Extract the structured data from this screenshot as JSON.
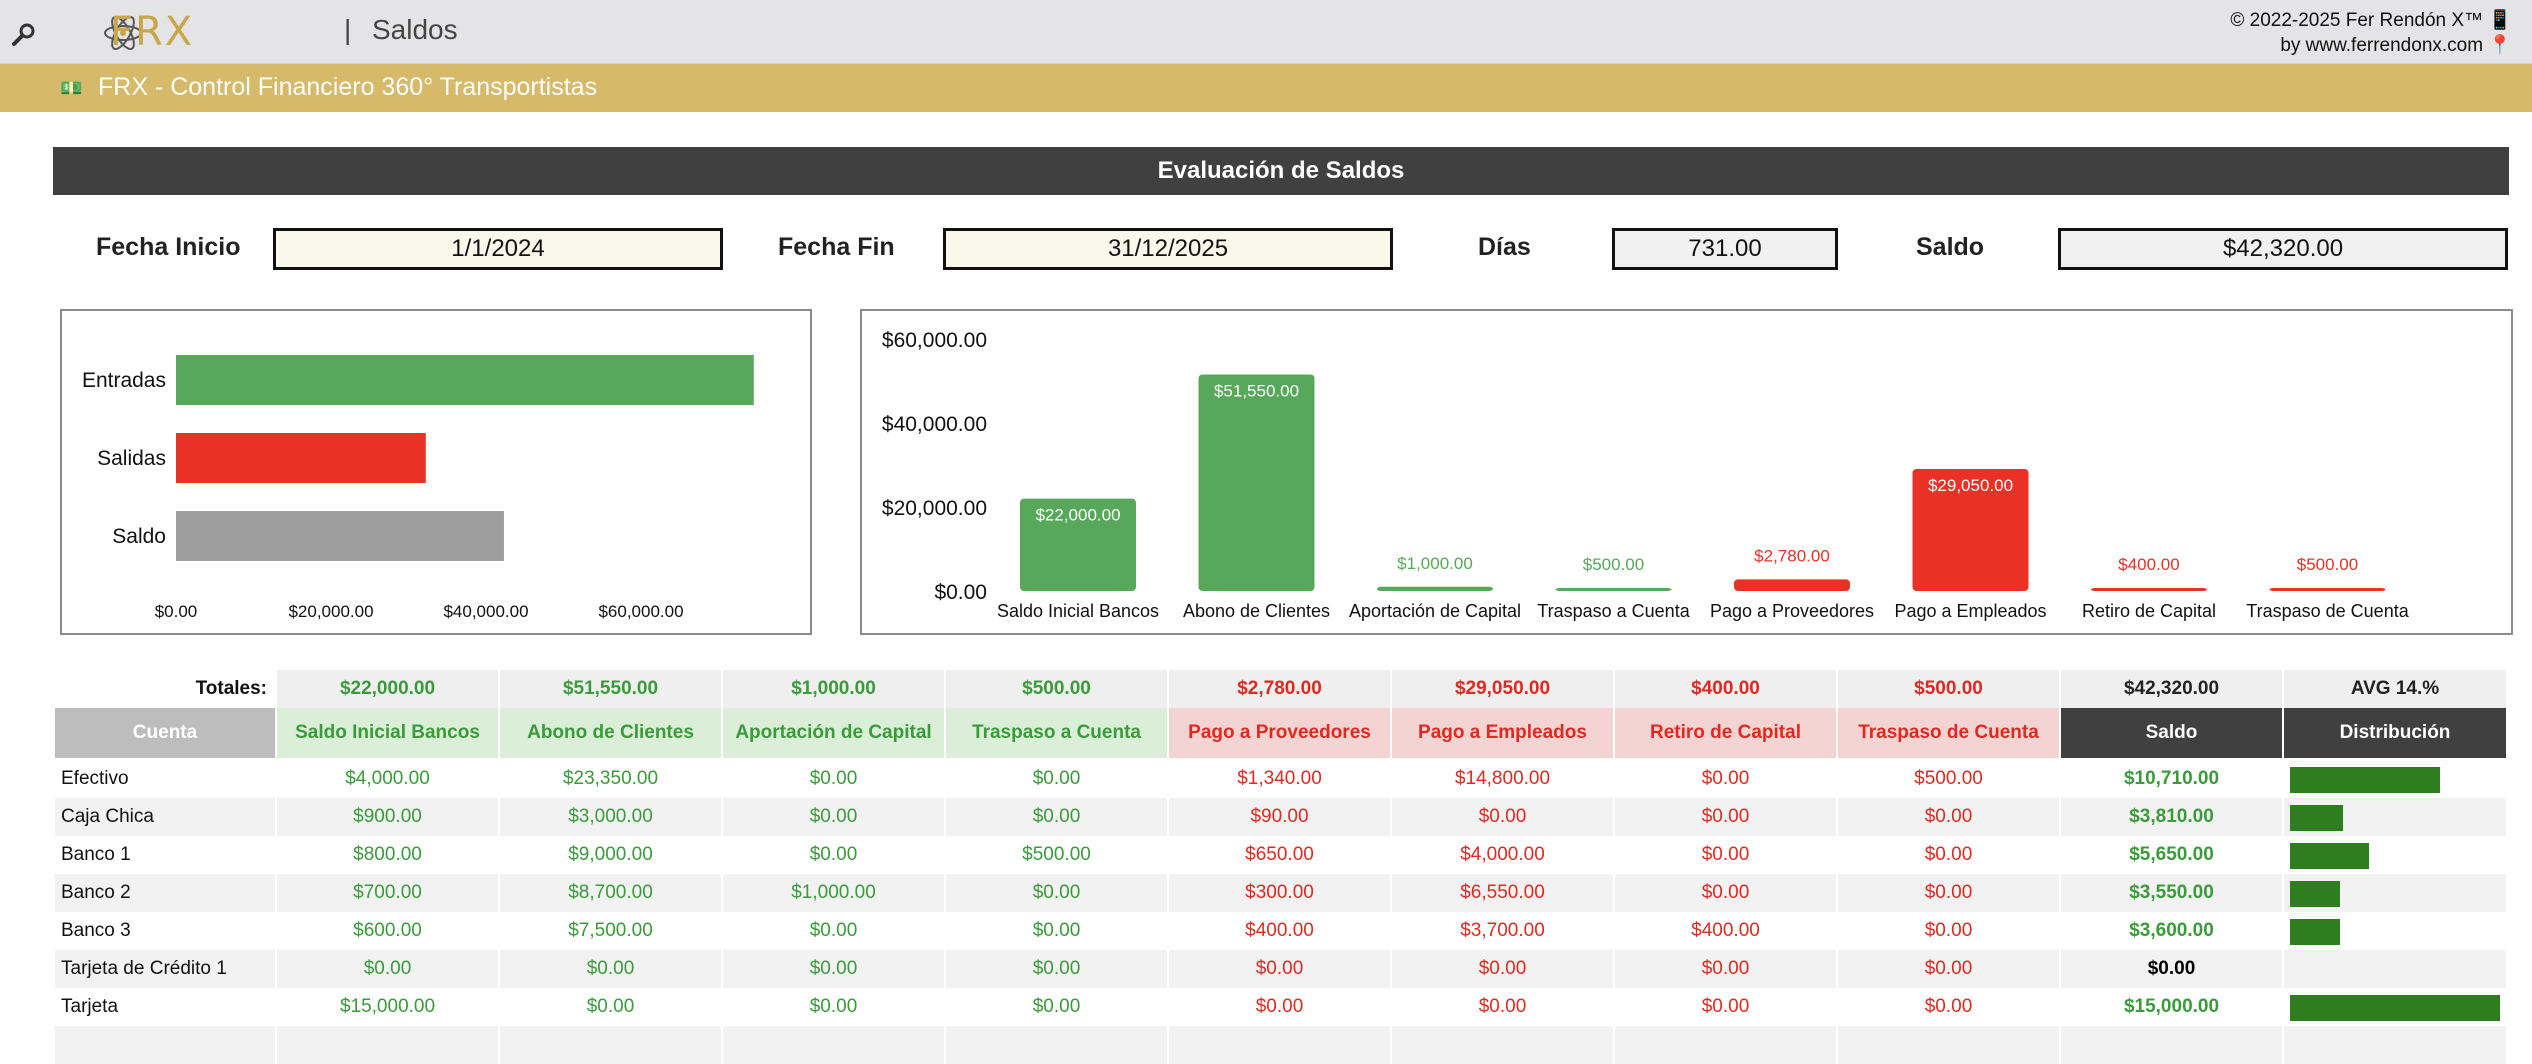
{
  "header": {
    "page_name": "Saldos",
    "separator": "|",
    "logo_text": "FRX",
    "copyright_line1": "© 2022-2025 Fer Rendón X™ 📱",
    "copyright_line2": "by www.ferrendonx.com 📍",
    "subtitle_icon": "💵",
    "subtitle": "FRX - Control Financiero 360° Transportistas",
    "brand_color": "#d6b969"
  },
  "section": {
    "title": "Evaluación de Saldos"
  },
  "filters": {
    "start_label": "Fecha Inicio",
    "start_value": "1/1/2024",
    "end_label": "Fecha Fin",
    "end_value": "31/12/2025",
    "days_label": "Días",
    "days_value": "731.00",
    "balance_label": "Saldo",
    "balance_value": "$42,320.00"
  },
  "chart_data": [
    {
      "type": "bar",
      "orientation": "horizontal",
      "categories": [
        "Entradas",
        "Salidas",
        "Saldo"
      ],
      "values": [
        74550,
        32230,
        42320
      ],
      "colors": [
        "#57a85b",
        "#e93125",
        "#9e9e9e"
      ],
      "xlim": [
        0,
        74550
      ],
      "ticks": [
        0,
        20000,
        40000,
        60000
      ],
      "tick_labels": [
        "$0.00",
        "$20,000.00",
        "$40,000.00",
        "$60,000.00"
      ]
    },
    {
      "type": "bar",
      "categories": [
        "Saldo Inicial Bancos",
        "Abono de Clientes",
        "Aportación de Capital",
        "Traspaso a Cuenta",
        "Pago a Proveedores",
        "Pago a Empleados",
        "Retiro de Capital",
        "Traspaso de Cuenta"
      ],
      "values": [
        22000,
        51550,
        1000,
        500,
        2780,
        29050,
        400,
        500
      ],
      "data_labels": [
        "$22,000.00",
        "$51,550.00",
        "$1,000.00",
        "$500.00",
        "$2,780.00",
        "$29,050.00",
        "$400.00",
        "$500.00"
      ],
      "colors": [
        "#57a85b",
        "#57a85b",
        "#57a85b",
        "#57a85b",
        "#e93125",
        "#e93125",
        "#e93125",
        "#e93125"
      ],
      "ylim": [
        0,
        60000
      ],
      "ticks": [
        0,
        20000,
        40000,
        60000
      ],
      "tick_labels": [
        "$0.00",
        "$20,000.00",
        "$40,000.00",
        "$60,000.00"
      ]
    }
  ],
  "table": {
    "totals_label": "Totales:",
    "totals": [
      "$22,000.00",
      "$51,550.00",
      "$1,000.00",
      "$500.00",
      "$2,780.00",
      "$29,050.00",
      "$400.00",
      "$500.00",
      "$42,320.00",
      "AVG 14.%"
    ],
    "headers": [
      "Cuenta",
      "Saldo Inicial Bancos",
      "Abono de Clientes",
      "Aportación de Capital",
      "Traspaso a Cuenta",
      "Pago a Proveedores",
      "Pago a Empleados",
      "Retiro de Capital",
      "Traspaso de Cuenta",
      "Saldo",
      "Distribución"
    ],
    "rows": [
      {
        "cells": [
          "Efectivo",
          "$4,000.00",
          "$23,350.00",
          "$0.00",
          "$0.00",
          "$1,340.00",
          "$14,800.00",
          "$0.00",
          "$500.00",
          "$10,710.00"
        ],
        "share": 0.714
      },
      {
        "cells": [
          "Caja Chica",
          "$900.00",
          "$3,000.00",
          "$0.00",
          "$0.00",
          "$90.00",
          "$0.00",
          "$0.00",
          "$0.00",
          "$3,810.00"
        ],
        "share": 0.254
      },
      {
        "cells": [
          "Banco 1",
          "$800.00",
          "$9,000.00",
          "$0.00",
          "$500.00",
          "$650.00",
          "$4,000.00",
          "$0.00",
          "$0.00",
          "$5,650.00"
        ],
        "share": 0.377
      },
      {
        "cells": [
          "Banco 2",
          "$700.00",
          "$8,700.00",
          "$1,000.00",
          "$0.00",
          "$300.00",
          "$6,550.00",
          "$0.00",
          "$0.00",
          "$3,550.00"
        ],
        "share": 0.237
      },
      {
        "cells": [
          "Banco 3",
          "$600.00",
          "$7,500.00",
          "$0.00",
          "$0.00",
          "$400.00",
          "$3,700.00",
          "$400.00",
          "$0.00",
          "$3,600.00"
        ],
        "share": 0.24
      },
      {
        "cells": [
          "Tarjeta de Crédito 1",
          "$0.00",
          "$0.00",
          "$0.00",
          "$0.00",
          "$0.00",
          "$0.00",
          "$0.00",
          "$0.00",
          "$0.00"
        ],
        "share": 0
      },
      {
        "cells": [
          "Tarjeta",
          "$15,000.00",
          "$0.00",
          "$0.00",
          "$0.00",
          "$0.00",
          "$0.00",
          "$0.00",
          "$0.00",
          "$15,000.00"
        ],
        "share": 1.0
      }
    ]
  }
}
